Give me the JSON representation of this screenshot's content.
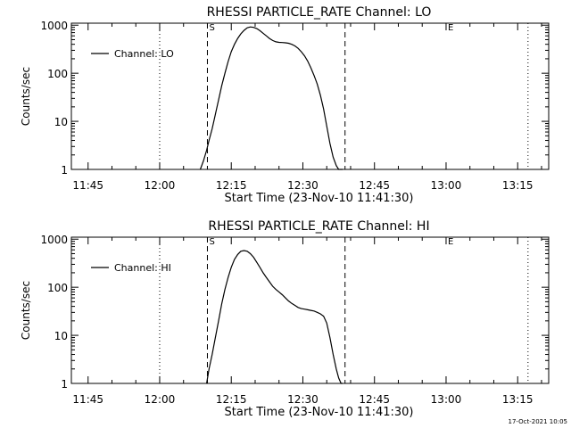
{
  "footer": {
    "timestamp": "17-Oct-2021 10:05"
  },
  "chart_data": [
    {
      "type": "line",
      "title": "RHESSI PARTICLE_RATE Channel: LO",
      "xlabel": "Start Time (23-Nov-10 11:41:30)",
      "ylabel": "Counts/sec",
      "yscale": "log",
      "ylim": [
        1,
        1100
      ],
      "xlim": [
        "11:41:30",
        "13:21:30"
      ],
      "xticks": [
        "11:45",
        "12:00",
        "12:15",
        "12:30",
        "12:45",
        "13:00",
        "13:15"
      ],
      "yticks": [
        "1",
        "10",
        "100",
        "1000"
      ],
      "legend": {
        "label": "Channel: LO",
        "placement": "top-left"
      },
      "markers": [
        {
          "label": "S",
          "time": "12:10:00",
          "style": "dashed"
        },
        {
          "label": "",
          "time": "12:38:50",
          "style": "dashed"
        },
        {
          "label": "",
          "time": "12:00:00",
          "style": "dotted"
        },
        {
          "label": "E",
          "time": "13:00:00",
          "style": "none"
        },
        {
          "label": "",
          "time": "13:17:10",
          "style": "dotted"
        }
      ],
      "series": [
        {
          "name": "Channel: LO",
          "x": [
            "12:08:30",
            "12:09:10",
            "12:09:50",
            "12:10:20",
            "12:11:00",
            "12:11:40",
            "12:12:20",
            "12:13:00",
            "12:13:40",
            "12:14:20",
            "12:15:00",
            "12:15:40",
            "12:16:20",
            "12:17:00",
            "12:17:40",
            "12:18:20",
            "12:19:00",
            "12:19:40",
            "12:20:20",
            "12:21:00",
            "12:21:40",
            "12:22:20",
            "12:23:00",
            "12:23:40",
            "12:24:20",
            "12:25:00",
            "12:25:40",
            "12:26:20",
            "12:27:00",
            "12:27:40",
            "12:28:20",
            "12:29:00",
            "12:29:40",
            "12:30:20",
            "12:31:00",
            "12:31:40",
            "12:32:20",
            "12:33:00",
            "12:33:40",
            "12:34:20",
            "12:35:00",
            "12:35:40",
            "12:36:20",
            "12:37:00",
            "12:37:30",
            "12:38:00",
            "12:38:20"
          ],
          "y": [
            1,
            1.5,
            2.5,
            4,
            7,
            14,
            28,
            55,
            100,
            175,
            280,
            400,
            530,
            660,
            780,
            880,
            920,
            900,
            850,
            770,
            680,
            600,
            530,
            480,
            450,
            440,
            435,
            430,
            420,
            400,
            370,
            330,
            280,
            230,
            180,
            130,
            90,
            60,
            35,
            18,
            8,
            3.5,
            1.8,
            1.2,
            1,
            1,
            1
          ]
        }
      ]
    },
    {
      "type": "line",
      "title": "RHESSI PARTICLE_RATE Channel: HI",
      "xlabel": "Start Time (23-Nov-10 11:41:30)",
      "ylabel": "Counts/sec",
      "yscale": "log",
      "ylim": [
        1,
        1100
      ],
      "xlim": [
        "11:41:30",
        "13:21:30"
      ],
      "xticks": [
        "11:45",
        "12:00",
        "12:15",
        "12:30",
        "12:45",
        "13:00",
        "13:15"
      ],
      "yticks": [
        "1",
        "10",
        "100",
        "1000"
      ],
      "legend": {
        "label": "Channel: HI",
        "placement": "top-left"
      },
      "markers": [
        {
          "label": "S",
          "time": "12:10:00",
          "style": "dashed"
        },
        {
          "label": "",
          "time": "12:38:50",
          "style": "dashed"
        },
        {
          "label": "",
          "time": "12:00:00",
          "style": "dotted"
        },
        {
          "label": "E",
          "time": "13:00:00",
          "style": "none"
        },
        {
          "label": "",
          "time": "13:17:10",
          "style": "dotted"
        }
      ],
      "series": [
        {
          "name": "Channel: HI",
          "x": [
            "12:09:50",
            "12:10:20",
            "12:11:00",
            "12:11:40",
            "12:12:20",
            "12:13:00",
            "12:13:40",
            "12:14:20",
            "12:15:00",
            "12:15:40",
            "12:16:20",
            "12:17:00",
            "12:17:40",
            "12:18:20",
            "12:19:00",
            "12:19:40",
            "12:20:20",
            "12:21:00",
            "12:21:40",
            "12:22:20",
            "12:23:00",
            "12:23:40",
            "12:24:20",
            "12:25:00",
            "12:25:40",
            "12:26:20",
            "12:27:00",
            "12:27:40",
            "12:28:20",
            "12:29:00",
            "12:29:40",
            "12:30:20",
            "12:31:00",
            "12:31:40",
            "12:32:20",
            "12:33:00",
            "12:33:40",
            "12:34:20",
            "12:35:00",
            "12:35:40",
            "12:36:20",
            "12:37:00",
            "12:37:30",
            "12:38:00",
            "12:38:20"
          ],
          "y": [
            1,
            2,
            4,
            9,
            20,
            45,
            90,
            160,
            260,
            380,
            480,
            560,
            580,
            560,
            500,
            420,
            330,
            260,
            200,
            160,
            130,
            105,
            90,
            80,
            70,
            60,
            52,
            46,
            42,
            38,
            36,
            35,
            34,
            33,
            32,
            30,
            28,
            25,
            18,
            9,
            4,
            2,
            1.3,
            1,
            1
          ]
        }
      ]
    }
  ]
}
